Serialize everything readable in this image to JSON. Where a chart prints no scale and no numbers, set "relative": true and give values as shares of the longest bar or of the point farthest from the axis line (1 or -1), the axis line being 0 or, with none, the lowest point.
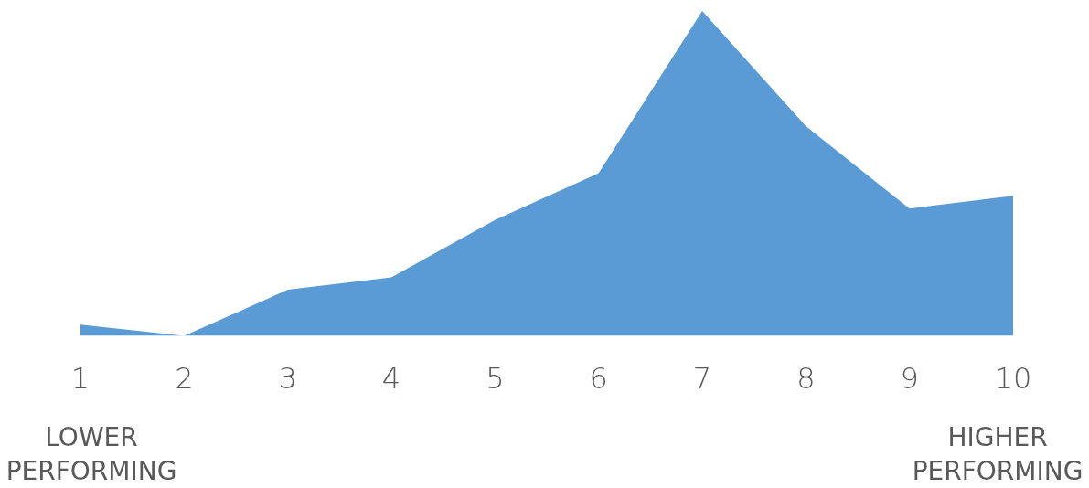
{
  "chart_data": {
    "type": "area",
    "relative": true,
    "categories": [
      "1",
      "2",
      "3",
      "4",
      "5",
      "6",
      "7",
      "8",
      "9",
      "10"
    ],
    "values": [
      0.035,
      0,
      0.142,
      0.18,
      0.357,
      0.501,
      1,
      0.646,
      0.392,
      0.431
    ],
    "color": "#5b9bd5",
    "annotations": [
      "LOWER PERFORMING",
      "HIGHER PERFORMING"
    ]
  }
}
